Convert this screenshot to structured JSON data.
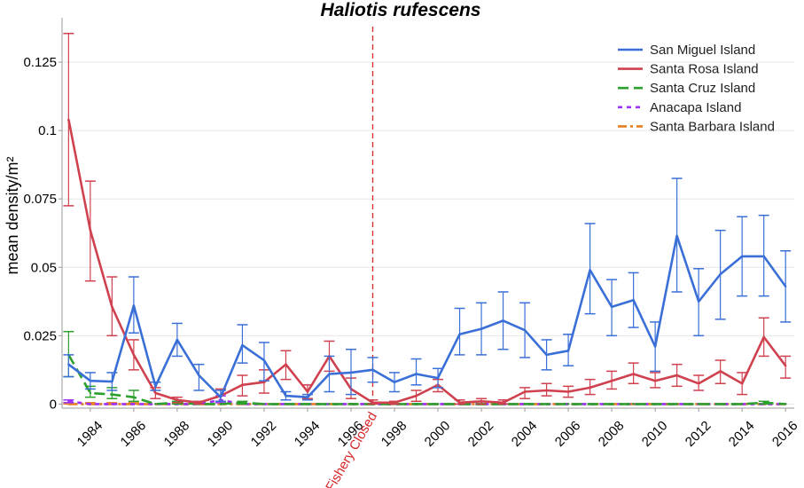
{
  "chart_data": {
    "type": "line",
    "title": "Haliotis rufescens",
    "xlabel": "",
    "ylabel": "mean density/m²",
    "xlim": [
      1982.7,
      2016.4
    ],
    "ylim": [
      -0.0015,
      0.138
    ],
    "y_ticks": [
      0,
      0.025,
      0.05,
      0.075,
      0.1,
      0.125
    ],
    "y_tick_labels": [
      "0",
      "0.025",
      "0.05",
      "0.075",
      "0.1",
      "0.125"
    ],
    "x_ticks": [
      1984,
      1986,
      1988,
      1990,
      1992,
      1994,
      1996,
      1998,
      2000,
      2002,
      2004,
      2006,
      2008,
      2010,
      2012,
      2014,
      2016
    ],
    "x_tick_labels": [
      "1984",
      "1986",
      "1988",
      "1990",
      "1992",
      "1994",
      "1996",
      "1998",
      "2000",
      "2002",
      "2004",
      "2006",
      "2008",
      "2010",
      "2012",
      "2014",
      "2016"
    ],
    "grid": true,
    "legend_position": "top-right",
    "annotation": {
      "x": 1997,
      "label": "Fishery Closed",
      "color": "#d62728"
    },
    "series": [
      {
        "name": "San Miguel Island",
        "color": "#3b6fd8",
        "dash": "solid",
        "x": [
          1983,
          1984,
          1985,
          1986,
          1987,
          1988,
          1989,
          1990,
          1991,
          1992,
          1993,
          1994,
          1995,
          1996,
          1997,
          1998,
          1999,
          2000,
          2001,
          2002,
          2003,
          2004,
          2005,
          2006,
          2007,
          2008,
          2009,
          2010,
          2011,
          2012,
          2013,
          2014,
          2015,
          2016
        ],
        "values": [
          0.0145,
          0.0085,
          0.0082,
          0.036,
          0.0065,
          0.0235,
          0.0105,
          0.0025,
          0.0215,
          0.016,
          0.003,
          0.0025,
          0.011,
          0.0115,
          0.0125,
          0.008,
          0.011,
          0.0095,
          0.0255,
          0.0275,
          0.0305,
          0.027,
          0.018,
          0.0195,
          0.049,
          0.0355,
          0.038,
          0.021,
          0.0615,
          0.0375,
          0.0475,
          0.054,
          0.054,
          0.043
        ],
        "err_low": [
          0.01,
          0.0055,
          0.005,
          0.026,
          0.005,
          0.0175,
          0.005,
          0.001,
          0.015,
          0.0085,
          0.0015,
          0.0015,
          0.0045,
          0.0035,
          0.008,
          0.0045,
          0.007,
          0.006,
          0.018,
          0.018,
          0.02,
          0.017,
          0.0125,
          0.014,
          0.033,
          0.025,
          0.028,
          0.012,
          0.041,
          0.025,
          0.031,
          0.0395,
          0.0395,
          0.03
        ],
        "err_high": [
          0.018,
          0.0115,
          0.0115,
          0.0465,
          0.008,
          0.0295,
          0.0145,
          0.005,
          0.029,
          0.0225,
          0.0045,
          0.0035,
          0.0175,
          0.02,
          0.017,
          0.0115,
          0.0165,
          0.013,
          0.035,
          0.037,
          0.041,
          0.037,
          0.0235,
          0.0255,
          0.066,
          0.0455,
          0.048,
          0.03,
          0.0825,
          0.0495,
          0.0635,
          0.0685,
          0.069,
          0.056
        ]
      },
      {
        "name": "Santa Rosa Island",
        "color": "#d0414f",
        "dash": "solid",
        "x": [
          1983,
          1984,
          1985,
          1986,
          1987,
          1988,
          1989,
          1990,
          1991,
          1992,
          1993,
          1994,
          1995,
          1996,
          1997,
          1998,
          1999,
          2000,
          2001,
          2002,
          2003,
          2004,
          2005,
          2006,
          2007,
          2008,
          2009,
          2010,
          2011,
          2012,
          2013,
          2014,
          2015,
          2016
        ],
        "values": [
          0.104,
          0.0635,
          0.0355,
          0.018,
          0.004,
          0.0015,
          0.0005,
          0.003,
          0.007,
          0.008,
          0.0145,
          0.0045,
          0.0175,
          0.0055,
          0.0005,
          0.0005,
          0.003,
          0.007,
          0.0005,
          0.001,
          0.0005,
          0.0045,
          0.005,
          0.0045,
          0.006,
          0.0085,
          0.011,
          0.0085,
          0.0105,
          0.0075,
          0.012,
          0.0075,
          0.0245,
          0.014
        ],
        "err_low": [
          0.0725,
          0.045,
          0.025,
          0.0125,
          0.002,
          0.0005,
          0.0,
          0.001,
          0.003,
          0.004,
          0.009,
          0.002,
          0.012,
          0.002,
          0.0,
          0.0,
          0.001,
          0.0045,
          0.0,
          0.0,
          0.0,
          0.002,
          0.003,
          0.0025,
          0.0035,
          0.0055,
          0.0075,
          0.006,
          0.0065,
          0.005,
          0.0075,
          0.0035,
          0.0175,
          0.0095
        ],
        "err_high": [
          0.1355,
          0.0815,
          0.0465,
          0.0235,
          0.006,
          0.0025,
          0.001,
          0.0055,
          0.0105,
          0.0125,
          0.0195,
          0.007,
          0.023,
          0.0095,
          0.0015,
          0.001,
          0.005,
          0.009,
          0.0015,
          0.002,
          0.0015,
          0.006,
          0.0075,
          0.0065,
          0.009,
          0.012,
          0.015,
          0.0115,
          0.0145,
          0.0105,
          0.016,
          0.0115,
          0.0315,
          0.0175
        ]
      },
      {
        "name": "Santa Cruz Island",
        "color": "#2ca02c",
        "dash": "long",
        "x": [
          1983,
          1984,
          1985,
          1986,
          1987,
          1988,
          1989,
          1990,
          1991,
          1992,
          1993,
          1994,
          1995,
          1996,
          1997,
          1998,
          1999,
          2000,
          2001,
          2002,
          2003,
          2004,
          2005,
          2006,
          2007,
          2008,
          2009,
          2010,
          2011,
          2012,
          2013,
          2014,
          2015,
          2016
        ],
        "values": [
          0.018,
          0.004,
          0.0035,
          0.0025,
          0.0,
          0.0005,
          0.0,
          0.0,
          0.0005,
          0.0,
          0.0,
          0.0,
          0.0,
          0.0,
          0.0,
          0.0,
          0.0,
          0.0,
          0.0,
          0.0,
          0.0,
          0.0,
          0.0,
          0.0,
          0.0,
          0.0,
          0.0,
          0.0,
          0.0,
          0.0,
          0.0,
          0.0,
          0.0005,
          0.0
        ],
        "err_low": [
          0.01,
          0.0025,
          0.002,
          0.001,
          0.0,
          0.0,
          0.0,
          0.0,
          0.0,
          0.0,
          0.0,
          0.0,
          0.0,
          0.0,
          0.0,
          0.0,
          0.0,
          0.0,
          0.0,
          0.0,
          0.0,
          0.0,
          0.0,
          0.0,
          0.0,
          0.0,
          0.0,
          0.0,
          0.0,
          0.0,
          0.0,
          0.0,
          0.0,
          0.0
        ],
        "err_high": [
          0.0265,
          0.0065,
          0.006,
          0.005,
          0.0,
          0.001,
          0.0,
          0.0,
          0.001,
          0.0,
          0.0,
          0.0,
          0.0,
          0.0,
          0.0,
          0.0,
          0.0,
          0.0,
          0.0,
          0.0,
          0.0,
          0.0,
          0.0,
          0.0,
          0.0,
          0.0,
          0.0,
          0.0,
          0.0,
          0.0,
          0.0,
          0.0,
          0.001,
          0.0
        ]
      },
      {
        "name": "Anacapa Island",
        "color": "#9b30ff",
        "dash": "short",
        "x": [
          1983,
          1984,
          1985,
          1986,
          1987,
          1988,
          1989,
          1990,
          1991,
          1992,
          1993,
          1994,
          1995,
          1996,
          1997,
          1998,
          1999,
          2000,
          2001,
          2002,
          2003,
          2004,
          2005,
          2006,
          2007,
          2008,
          2009,
          2010,
          2011,
          2012,
          2013,
          2014,
          2015,
          2016
        ],
        "values": [
          0.001,
          0.0,
          0.0,
          0.0,
          0.0,
          0.0,
          0.0,
          0.0015,
          0.0,
          0.0,
          0.0,
          0.0,
          0.0,
          0.0,
          0.0,
          0.0,
          0.0,
          0.0,
          0.0,
          0.0,
          0.0,
          0.0,
          0.0,
          0.0,
          0.0,
          0.0,
          0.0,
          0.0,
          0.0,
          0.0,
          0.0,
          0.0,
          0.0,
          0.0
        ],
        "err_low": [
          0.0005,
          0.0,
          0.0,
          0.0,
          0.0,
          0.0,
          0.0,
          0.0005,
          0.0,
          0.0,
          0.0,
          0.0,
          0.0,
          0.0,
          0.0,
          0.0,
          0.0,
          0.0,
          0.0,
          0.0,
          0.0,
          0.0,
          0.0,
          0.0,
          0.0,
          0.0,
          0.0,
          0.0,
          0.0,
          0.0,
          0.0,
          0.0,
          0.0,
          0.0
        ],
        "err_high": [
          0.0015,
          0.0,
          0.0,
          0.0,
          0.0,
          0.0,
          0.0,
          0.003,
          0.0,
          0.0,
          0.0,
          0.0,
          0.0,
          0.0,
          0.0,
          0.0,
          0.0,
          0.0,
          0.0,
          0.0,
          0.0,
          0.0,
          0.0,
          0.0,
          0.0,
          0.0,
          0.0,
          0.0,
          0.0,
          0.0,
          0.0,
          0.0,
          0.0,
          0.0
        ]
      },
      {
        "name": "Santa Barbara Island",
        "color": "#e67e22",
        "dash": "dashdot",
        "x": [
          1983,
          1984,
          1985,
          1986,
          1987,
          1988,
          1989,
          1990,
          1991,
          1992,
          1993,
          1994,
          1995,
          1996,
          1997,
          1998,
          1999,
          2000,
          2001,
          2002,
          2003,
          2004,
          2005,
          2006,
          2007,
          2008,
          2009,
          2010,
          2011,
          2012,
          2013,
          2014,
          2015,
          2016
        ],
        "values": [
          0.0,
          0.0,
          0.0,
          0.0,
          0.0,
          0.0,
          0.0,
          0.0,
          0.0,
          0.0,
          0.0,
          0.0,
          0.0,
          0.0,
          0.0,
          0.0,
          0.0,
          0.0,
          0.0,
          0.0,
          0.0,
          0.0,
          0.0,
          0.0,
          0.0,
          0.0,
          0.0,
          0.0,
          0.0,
          0.0,
          0.0,
          0.0,
          0.0,
          0.0
        ],
        "err_low": [
          0.0,
          0.0,
          0.0,
          0.0,
          0.0,
          0.0,
          0.0,
          0.0,
          0.0,
          0.0,
          0.0,
          0.0,
          0.0,
          0.0,
          0.0,
          0.0,
          0.0,
          0.0,
          0.0,
          0.0,
          0.0,
          0.0,
          0.0,
          0.0,
          0.0,
          0.0,
          0.0,
          0.0,
          0.0,
          0.0,
          0.0,
          0.0,
          0.0,
          0.0
        ],
        "err_high": [
          0.0005,
          0.0005,
          0.0005,
          0.0005,
          0.0,
          0.0,
          0.0,
          0.0,
          0.0,
          0.0,
          0.0,
          0.0,
          0.0,
          0.0,
          0.0,
          0.0,
          0.0,
          0.0,
          0.0,
          0.0,
          0.0,
          0.0,
          0.0,
          0.0,
          0.0,
          0.0,
          0.0,
          0.0,
          0.0,
          0.0,
          0.0,
          0.0,
          0.0,
          0.0
        ]
      }
    ]
  }
}
